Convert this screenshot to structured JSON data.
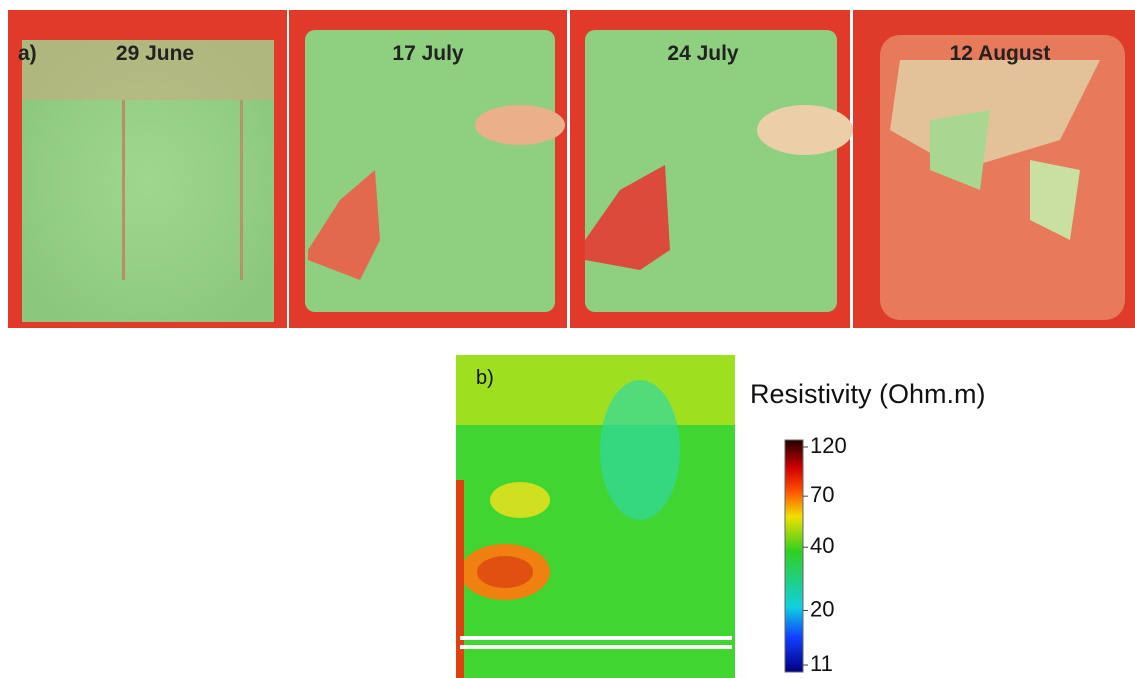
{
  "panel_a": {
    "label": "a)",
    "dates": [
      "29 June",
      "17 July",
      "24 July",
      "12 August"
    ]
  },
  "panel_b": {
    "label": "b)",
    "colorbar": {
      "title": "Resistivity (Ohm.m)",
      "ticks": [
        120,
        70,
        40,
        20,
        11
      ],
      "log_scale": true
    }
  }
}
